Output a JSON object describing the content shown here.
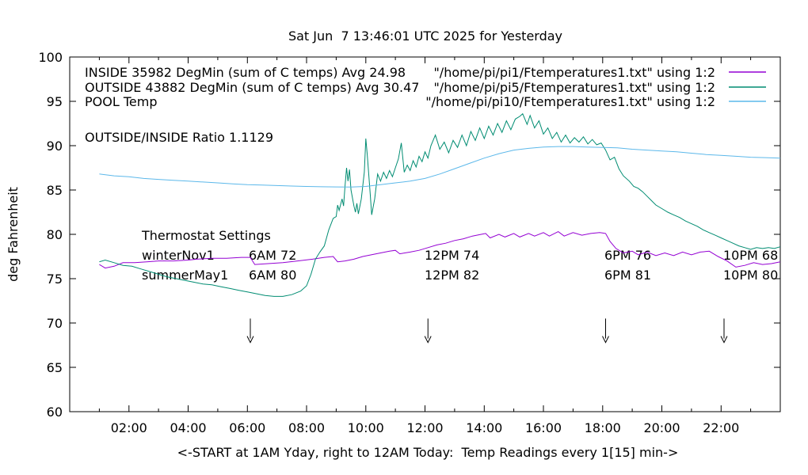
{
  "ratio_label": "OUTSIDE/INSIDE Ratio 1.1129",
  "thermostat": {
    "heading": "Thermostat Settings",
    "rows": [
      {
        "name": "winterNov1",
        "settings": [
          "6AM 72",
          "12PM 74",
          "6PM 76",
          "10PM 68"
        ]
      },
      {
        "name": "summerMay1",
        "settings": [
          "6AM 80",
          "12PM 82",
          "6PM 81",
          "10PM 80"
        ]
      }
    ]
  },
  "chart_data": {
    "type": "line",
    "title": "Sat Jun  7 13:46:01 UTC 2025 for Yesterday",
    "xlabel": "<-START at 1AM Yday, right to 12AM Today:  Temp Readings every 1[15] min->",
    "ylabel": "deg Fahrenheit",
    "xlim_hours": [
      0,
      24
    ],
    "ylim": [
      60,
      100
    ],
    "x_major_ticks": [
      2,
      4,
      6,
      8,
      10,
      12,
      14,
      16,
      18,
      20,
      22
    ],
    "x_tick_labels": [
      "02:00",
      "04:00",
      "06:00",
      "08:00",
      "10:00",
      "12:00",
      "14:00",
      "16:00",
      "18:00",
      "20:00",
      "22:00"
    ],
    "x_minor_step_hours": 1,
    "y_ticks": [
      60,
      65,
      70,
      75,
      80,
      85,
      90,
      95,
      100
    ],
    "grid": "off",
    "legend_position": "top-right",
    "border_color": "#000000",
    "arrows_at_hours": [
      6.1,
      12.1,
      18.1,
      22.1
    ],
    "arrow_temp_from": 70.5,
    "arrow_temp_to": 67.8,
    "series": [
      {
        "name": "INSIDE",
        "annotation": "INSIDE 35982 DegMin (sum of C temps) Avg 24.98",
        "legend": "\"/home/pi/pi1/Ftemperatures1.txt\" using 1:2",
        "color": "#9400d3",
        "points": [
          [
            1,
            76.6
          ],
          [
            1.2,
            76.2
          ],
          [
            1.5,
            76.4
          ],
          [
            1.8,
            76.8
          ],
          [
            2.2,
            76.8
          ],
          [
            2.6,
            76.9
          ],
          [
            3,
            77
          ],
          [
            3.5,
            77
          ],
          [
            4,
            77.1
          ],
          [
            4.3,
            77.2
          ],
          [
            4.8,
            77.3
          ],
          [
            5.3,
            77.3
          ],
          [
            5.8,
            77.4
          ],
          [
            6.1,
            77.4
          ],
          [
            6.25,
            76.6
          ],
          [
            6.7,
            76.7
          ],
          [
            7.2,
            76.8
          ],
          [
            7.7,
            77
          ],
          [
            8.2,
            77.2
          ],
          [
            8.6,
            77.4
          ],
          [
            8.9,
            77.5
          ],
          [
            9.05,
            76.9
          ],
          [
            9.3,
            77
          ],
          [
            9.6,
            77.2
          ],
          [
            9.9,
            77.5
          ],
          [
            10.2,
            77.7
          ],
          [
            10.5,
            77.9
          ],
          [
            10.8,
            78.1
          ],
          [
            11,
            78.2
          ],
          [
            11.15,
            77.8
          ],
          [
            11.5,
            78
          ],
          [
            11.8,
            78.2
          ],
          [
            12.1,
            78.5
          ],
          [
            12.4,
            78.8
          ],
          [
            12.7,
            79
          ],
          [
            13,
            79.3
          ],
          [
            13.3,
            79.5
          ],
          [
            13.6,
            79.8
          ],
          [
            13.9,
            80
          ],
          [
            14.05,
            80.1
          ],
          [
            14.2,
            79.6
          ],
          [
            14.5,
            80
          ],
          [
            14.7,
            79.7
          ],
          [
            15,
            80.1
          ],
          [
            15.2,
            79.7
          ],
          [
            15.5,
            80.1
          ],
          [
            15.7,
            79.8
          ],
          [
            16,
            80.2
          ],
          [
            16.2,
            79.8
          ],
          [
            16.5,
            80.3
          ],
          [
            16.7,
            79.8
          ],
          [
            17,
            80.2
          ],
          [
            17.3,
            79.9
          ],
          [
            17.6,
            80.1
          ],
          [
            17.9,
            80.2
          ],
          [
            18.1,
            80.1
          ],
          [
            18.25,
            79.2
          ],
          [
            18.45,
            78.4
          ],
          [
            18.7,
            77.9
          ],
          [
            19,
            78.1
          ],
          [
            19.2,
            77.7
          ],
          [
            19.5,
            78
          ],
          [
            19.8,
            77.6
          ],
          [
            20.1,
            77.9
          ],
          [
            20.4,
            77.6
          ],
          [
            20.7,
            78
          ],
          [
            21,
            77.7
          ],
          [
            21.3,
            78
          ],
          [
            21.6,
            78.1
          ],
          [
            21.9,
            77.5
          ],
          [
            22.2,
            77
          ],
          [
            22.5,
            76.3
          ],
          [
            22.8,
            76.5
          ],
          [
            23.1,
            76.8
          ],
          [
            23.4,
            76.6
          ],
          [
            23.7,
            76.7
          ],
          [
            24,
            76.9
          ]
        ]
      },
      {
        "name": "OUTSIDE",
        "annotation": "OUTSIDE 43882 DegMin (sum of C temps) Avg 30.47",
        "legend": "\"/home/pi/pi5/Ftemperatures1.txt\" using 1:2",
        "color": "#008c72",
        "points": [
          [
            1,
            76.9
          ],
          [
            1.2,
            77.1
          ],
          [
            1.5,
            76.8
          ],
          [
            1.8,
            76.5
          ],
          [
            2.1,
            76.4
          ],
          [
            2.4,
            76.1
          ],
          [
            2.7,
            75.8
          ],
          [
            3,
            75.5
          ],
          [
            3.3,
            75.2
          ],
          [
            3.6,
            75
          ],
          [
            3.9,
            74.8
          ],
          [
            4.2,
            74.6
          ],
          [
            4.5,
            74.4
          ],
          [
            4.8,
            74.3
          ],
          [
            5.1,
            74.1
          ],
          [
            5.4,
            73.9
          ],
          [
            5.7,
            73.7
          ],
          [
            6,
            73.5
          ],
          [
            6.3,
            73.3
          ],
          [
            6.6,
            73.1
          ],
          [
            6.9,
            73
          ],
          [
            7.2,
            73
          ],
          [
            7.5,
            73.2
          ],
          [
            7.8,
            73.6
          ],
          [
            8,
            74.2
          ],
          [
            8.15,
            75.5
          ],
          [
            8.3,
            77.2
          ],
          [
            8.45,
            78
          ],
          [
            8.6,
            78.7
          ],
          [
            8.75,
            80.5
          ],
          [
            8.9,
            81.8
          ],
          [
            9,
            82
          ],
          [
            9.05,
            83.3
          ],
          [
            9.1,
            82.7
          ],
          [
            9.2,
            84
          ],
          [
            9.25,
            83.2
          ],
          [
            9.3,
            85.5
          ],
          [
            9.35,
            87.5
          ],
          [
            9.4,
            86
          ],
          [
            9.45,
            87.3
          ],
          [
            9.5,
            85
          ],
          [
            9.6,
            83.2
          ],
          [
            9.65,
            82.5
          ],
          [
            9.7,
            83.5
          ],
          [
            9.75,
            82.3
          ],
          [
            9.85,
            84
          ],
          [
            9.95,
            87
          ],
          [
            10,
            90.8
          ],
          [
            10.05,
            89
          ],
          [
            10.15,
            84.5
          ],
          [
            10.2,
            82.2
          ],
          [
            10.3,
            84
          ],
          [
            10.4,
            86.8
          ],
          [
            10.5,
            86
          ],
          [
            10.6,
            87
          ],
          [
            10.7,
            86.3
          ],
          [
            10.8,
            87.2
          ],
          [
            10.9,
            86.5
          ],
          [
            11,
            87.5
          ],
          [
            11.1,
            88.5
          ],
          [
            11.2,
            90.3
          ],
          [
            11.3,
            87
          ],
          [
            11.4,
            87.8
          ],
          [
            11.5,
            87.2
          ],
          [
            11.6,
            88.3
          ],
          [
            11.7,
            87.6
          ],
          [
            11.8,
            88.8
          ],
          [
            11.9,
            88.2
          ],
          [
            12,
            89.3
          ],
          [
            12.1,
            88.6
          ],
          [
            12.2,
            90
          ],
          [
            12.35,
            91.2
          ],
          [
            12.5,
            89.6
          ],
          [
            12.65,
            90.4
          ],
          [
            12.8,
            89.2
          ],
          [
            12.95,
            90.6
          ],
          [
            13.1,
            89.8
          ],
          [
            13.25,
            91.2
          ],
          [
            13.4,
            90
          ],
          [
            13.55,
            91.6
          ],
          [
            13.7,
            90.6
          ],
          [
            13.85,
            92
          ],
          [
            14,
            90.8
          ],
          [
            14.15,
            92.2
          ],
          [
            14.3,
            91.2
          ],
          [
            14.45,
            92.5
          ],
          [
            14.6,
            91.5
          ],
          [
            14.75,
            92.8
          ],
          [
            14.9,
            91.8
          ],
          [
            15.05,
            93
          ],
          [
            15.2,
            93.3
          ],
          [
            15.3,
            93.6
          ],
          [
            15.45,
            92.4
          ],
          [
            15.55,
            93.4
          ],
          [
            15.7,
            92
          ],
          [
            15.85,
            92.8
          ],
          [
            16,
            91.3
          ],
          [
            16.15,
            92
          ],
          [
            16.3,
            90.8
          ],
          [
            16.45,
            91.5
          ],
          [
            16.6,
            90.4
          ],
          [
            16.75,
            91.2
          ],
          [
            16.9,
            90.3
          ],
          [
            17.05,
            90.9
          ],
          [
            17.2,
            90.4
          ],
          [
            17.35,
            91
          ],
          [
            17.5,
            90.2
          ],
          [
            17.65,
            90.7
          ],
          [
            17.8,
            90.1
          ],
          [
            17.95,
            90.3
          ],
          [
            18.1,
            89.5
          ],
          [
            18.25,
            88.4
          ],
          [
            18.4,
            88.7
          ],
          [
            18.55,
            87.4
          ],
          [
            18.7,
            86.6
          ],
          [
            18.9,
            86
          ],
          [
            19.05,
            85.4
          ],
          [
            19.2,
            85.2
          ],
          [
            19.35,
            84.8
          ],
          [
            19.5,
            84.3
          ],
          [
            19.65,
            83.8
          ],
          [
            19.8,
            83.3
          ],
          [
            20,
            82.9
          ],
          [
            20.2,
            82.5
          ],
          [
            20.4,
            82.2
          ],
          [
            20.6,
            81.9
          ],
          [
            20.8,
            81.5
          ],
          [
            21,
            81.2
          ],
          [
            21.2,
            80.9
          ],
          [
            21.4,
            80.5
          ],
          [
            21.6,
            80.2
          ],
          [
            21.8,
            79.9
          ],
          [
            22,
            79.6
          ],
          [
            22.2,
            79.3
          ],
          [
            22.4,
            79
          ],
          [
            22.6,
            78.7
          ],
          [
            22.8,
            78.5
          ],
          [
            23,
            78.3
          ],
          [
            23.2,
            78.5
          ],
          [
            23.4,
            78.4
          ],
          [
            23.6,
            78.5
          ],
          [
            23.8,
            78.4
          ],
          [
            24,
            78.6
          ]
        ]
      },
      {
        "name": "POOL",
        "annotation": "POOL Temp",
        "legend": "\"/home/pi/pi10/Ftemperatures1.txt\" using 1:2",
        "color": "#5cb8ea",
        "points": [
          [
            1,
            86.8
          ],
          [
            1.5,
            86.6
          ],
          [
            2,
            86.5
          ],
          [
            2.5,
            86.3
          ],
          [
            3,
            86.2
          ],
          [
            3.5,
            86.1
          ],
          [
            4,
            86
          ],
          [
            4.5,
            85.9
          ],
          [
            5,
            85.8
          ],
          [
            5.5,
            85.7
          ],
          [
            6,
            85.6
          ],
          [
            6.5,
            85.55
          ],
          [
            7,
            85.5
          ],
          [
            7.5,
            85.45
          ],
          [
            8,
            85.4
          ],
          [
            8.5,
            85.37
          ],
          [
            9,
            85.35
          ],
          [
            9.5,
            85.33
          ],
          [
            10,
            85.4
          ],
          [
            10.5,
            85.6
          ],
          [
            11,
            85.8
          ],
          [
            11.5,
            86
          ],
          [
            12,
            86.3
          ],
          [
            12.5,
            86.8
          ],
          [
            13,
            87.4
          ],
          [
            13.5,
            88
          ],
          [
            14,
            88.6
          ],
          [
            14.5,
            89.1
          ],
          [
            15,
            89.5
          ],
          [
            15.5,
            89.7
          ],
          [
            16,
            89.85
          ],
          [
            16.5,
            89.9
          ],
          [
            17,
            89.9
          ],
          [
            17.5,
            89.85
          ],
          [
            18,
            89.8
          ],
          [
            18.5,
            89.75
          ],
          [
            19,
            89.6
          ],
          [
            19.5,
            89.5
          ],
          [
            20,
            89.4
          ],
          [
            20.5,
            89.3
          ],
          [
            21,
            89.15
          ],
          [
            21.5,
            89
          ],
          [
            22,
            88.9
          ],
          [
            22.5,
            88.8
          ],
          [
            23,
            88.7
          ],
          [
            23.5,
            88.65
          ],
          [
            24,
            88.6
          ]
        ]
      }
    ]
  }
}
